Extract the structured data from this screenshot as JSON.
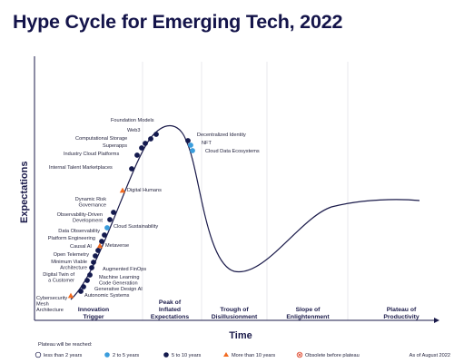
{
  "chart_data": {
    "type": "scatter",
    "title": "Hype Cycle for Emerging Tech, 2022",
    "xlabel": "Time",
    "ylabel": "Expectations",
    "phases": [
      "Innovation Trigger",
      "Peak of Inflated Expectations",
      "Trough of Disillusionment",
      "Slope of Enlightenment",
      "Plateau of Productivity"
    ],
    "legend_title": "Plateau will be reached:",
    "legend": [
      {
        "key": "lt2",
        "label": "less than 2 years",
        "color": "#ffffff"
      },
      {
        "key": "2to5",
        "label": "2 to 5 years",
        "color": "#3b9ddc"
      },
      {
        "key": "5to10",
        "label": "5 to 10 years",
        "color": "#141a4e"
      },
      {
        "key": "gt10",
        "label": "More than 10 years",
        "color": "#f26b21"
      },
      {
        "key": "obsolete",
        "label": "Obsolete before plateau",
        "color": "#e0533a"
      }
    ],
    "footnote": "As of August 2022",
    "technologies": [
      {
        "name": "Foundation Models",
        "category": "5to10"
      },
      {
        "name": "Web3",
        "category": "5to10"
      },
      {
        "name": "Computational Storage",
        "category": "5to10"
      },
      {
        "name": "Superapps",
        "category": "5to10"
      },
      {
        "name": "Industry Cloud Platforms",
        "category": "5to10"
      },
      {
        "name": "Internal Talent Marketplaces",
        "category": "5to10"
      },
      {
        "name": "Digital Humans",
        "category": "gt10"
      },
      {
        "name": "Dynamic Risk Governance",
        "category": "5to10"
      },
      {
        "name": "Observability-Driven Development",
        "category": "5to10"
      },
      {
        "name": "Cloud Sustainability",
        "category": "2to5"
      },
      {
        "name": "Data Observability",
        "category": "5to10"
      },
      {
        "name": "Platform Engineering",
        "category": "5to10"
      },
      {
        "name": "Metaverse",
        "category": "gt10"
      },
      {
        "name": "Causal AI",
        "category": "5to10"
      },
      {
        "name": "Open Telemetry",
        "category": "5to10"
      },
      {
        "name": "Minimum Viable Architecture",
        "category": "5to10"
      },
      {
        "name": "Augmented FinOps",
        "category": "5to10"
      },
      {
        "name": "Digital Twin of a Customer",
        "category": "5to10"
      },
      {
        "name": "Machine Learning Code Generation",
        "category": "5to10"
      },
      {
        "name": "Generative Design AI",
        "category": "5to10"
      },
      {
        "name": "Autonomic Systems",
        "category": "5to10"
      },
      {
        "name": "Cybersecurity Mesh Architecture",
        "category": "gt10"
      },
      {
        "name": "Decentralized Identity",
        "category": "5to10"
      },
      {
        "name": "NFT",
        "category": "2to5"
      },
      {
        "name": "Cloud Data Ecosystems",
        "category": "2to5"
      }
    ]
  }
}
